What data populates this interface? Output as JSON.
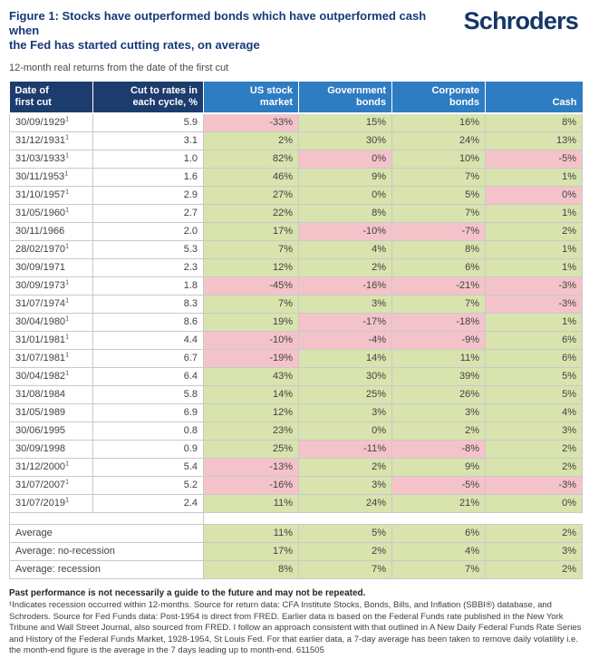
{
  "header": {
    "title": "Figure 1: Stocks have outperformed bonds which have outperformed cash when\nthe Fed has started cutting rates, on average",
    "brand": "Schroders",
    "subtitle": "12-month real returns from the date of the first cut"
  },
  "colors": {
    "header_dark_navy": "#1d3c6e",
    "header_blue": "#2e7cc2",
    "positive_cell_green": "#d8e3ae",
    "negative_cell_pink": "#f4c3ca",
    "title_blue": "#17397a"
  },
  "table": {
    "footnote_marker": "1",
    "columns": [
      {
        "key": "date_of_first_cut",
        "label": "Date of\nfirst cut",
        "style": "dark",
        "align": "left"
      },
      {
        "key": "cut_to_rates",
        "label": "Cut to rates in\neach cycle, %",
        "style": "dark",
        "align": "right"
      },
      {
        "key": "us_stock_market",
        "label": "US stock\nmarket",
        "style": "blue",
        "align": "right"
      },
      {
        "key": "government_bonds",
        "label": "Government\nbonds",
        "style": "blue",
        "align": "right"
      },
      {
        "key": "corporate_bonds",
        "label": "Corporate\nbonds",
        "style": "blue",
        "align": "right"
      },
      {
        "key": "cash",
        "label": "Cash",
        "style": "blue",
        "align": "right"
      }
    ],
    "rows": [
      {
        "date": "30/09/1929",
        "recession_footnote": true,
        "cut_to_rates": "5.9",
        "returns": [
          {
            "value": "-33%",
            "tone": "neg"
          },
          {
            "value": "15%",
            "tone": "pos"
          },
          {
            "value": "16%",
            "tone": "pos"
          },
          {
            "value": "8%",
            "tone": "pos"
          }
        ]
      },
      {
        "date": "31/12/1931",
        "recession_footnote": true,
        "cut_to_rates": "3.1",
        "returns": [
          {
            "value": "2%",
            "tone": "pos"
          },
          {
            "value": "30%",
            "tone": "pos"
          },
          {
            "value": "24%",
            "tone": "pos"
          },
          {
            "value": "13%",
            "tone": "pos"
          }
        ]
      },
      {
        "date": "31/03/1933",
        "recession_footnote": true,
        "cut_to_rates": "1.0",
        "returns": [
          {
            "value": "82%",
            "tone": "pos"
          },
          {
            "value": "0%",
            "tone": "neg"
          },
          {
            "value": "10%",
            "tone": "pos"
          },
          {
            "value": "-5%",
            "tone": "neg"
          }
        ]
      },
      {
        "date": "30/11/1953",
        "recession_footnote": true,
        "cut_to_rates": "1.6",
        "returns": [
          {
            "value": "46%",
            "tone": "pos"
          },
          {
            "value": "9%",
            "tone": "pos"
          },
          {
            "value": "7%",
            "tone": "pos"
          },
          {
            "value": "1%",
            "tone": "pos"
          }
        ]
      },
      {
        "date": "31/10/1957",
        "recession_footnote": true,
        "cut_to_rates": "2.9",
        "returns": [
          {
            "value": "27%",
            "tone": "pos"
          },
          {
            "value": "0%",
            "tone": "pos"
          },
          {
            "value": "5%",
            "tone": "pos"
          },
          {
            "value": "0%",
            "tone": "neg"
          }
        ]
      },
      {
        "date": "31/05/1960",
        "recession_footnote": true,
        "cut_to_rates": "2.7",
        "returns": [
          {
            "value": "22%",
            "tone": "pos"
          },
          {
            "value": "8%",
            "tone": "pos"
          },
          {
            "value": "7%",
            "tone": "pos"
          },
          {
            "value": "1%",
            "tone": "pos"
          }
        ]
      },
      {
        "date": "30/11/1966",
        "recession_footnote": false,
        "cut_to_rates": "2.0",
        "returns": [
          {
            "value": "17%",
            "tone": "pos"
          },
          {
            "value": "-10%",
            "tone": "neg"
          },
          {
            "value": "-7%",
            "tone": "neg"
          },
          {
            "value": "2%",
            "tone": "pos"
          }
        ]
      },
      {
        "date": "28/02/1970",
        "recession_footnote": true,
        "cut_to_rates": "5.3",
        "returns": [
          {
            "value": "7%",
            "tone": "pos"
          },
          {
            "value": "4%",
            "tone": "pos"
          },
          {
            "value": "8%",
            "tone": "pos"
          },
          {
            "value": "1%",
            "tone": "pos"
          }
        ]
      },
      {
        "date": "30/09/1971",
        "recession_footnote": false,
        "cut_to_rates": "2.3",
        "returns": [
          {
            "value": "12%",
            "tone": "pos"
          },
          {
            "value": "2%",
            "tone": "pos"
          },
          {
            "value": "6%",
            "tone": "pos"
          },
          {
            "value": "1%",
            "tone": "pos"
          }
        ]
      },
      {
        "date": "30/09/1973",
        "recession_footnote": true,
        "cut_to_rates": "1.8",
        "returns": [
          {
            "value": "-45%",
            "tone": "neg"
          },
          {
            "value": "-16%",
            "tone": "neg"
          },
          {
            "value": "-21%",
            "tone": "neg"
          },
          {
            "value": "-3%",
            "tone": "neg"
          }
        ]
      },
      {
        "date": "31/07/1974",
        "recession_footnote": true,
        "cut_to_rates": "8.3",
        "returns": [
          {
            "value": "7%",
            "tone": "pos"
          },
          {
            "value": "3%",
            "tone": "pos"
          },
          {
            "value": "7%",
            "tone": "pos"
          },
          {
            "value": "-3%",
            "tone": "neg"
          }
        ]
      },
      {
        "date": "30/04/1980",
        "recession_footnote": true,
        "cut_to_rates": "8.6",
        "returns": [
          {
            "value": "19%",
            "tone": "pos"
          },
          {
            "value": "-17%",
            "tone": "neg"
          },
          {
            "value": "-18%",
            "tone": "neg"
          },
          {
            "value": "1%",
            "tone": "pos"
          }
        ]
      },
      {
        "date": "31/01/1981",
        "recession_footnote": true,
        "cut_to_rates": "4.4",
        "returns": [
          {
            "value": "-10%",
            "tone": "neg"
          },
          {
            "value": "-4%",
            "tone": "neg"
          },
          {
            "value": "-9%",
            "tone": "neg"
          },
          {
            "value": "6%",
            "tone": "pos"
          }
        ]
      },
      {
        "date": "31/07/1981",
        "recession_footnote": true,
        "cut_to_rates": "6.7",
        "returns": [
          {
            "value": "-19%",
            "tone": "neg"
          },
          {
            "value": "14%",
            "tone": "pos"
          },
          {
            "value": "11%",
            "tone": "pos"
          },
          {
            "value": "6%",
            "tone": "pos"
          }
        ]
      },
      {
        "date": "30/04/1982",
        "recession_footnote": true,
        "cut_to_rates": "6.4",
        "returns": [
          {
            "value": "43%",
            "tone": "pos"
          },
          {
            "value": "30%",
            "tone": "pos"
          },
          {
            "value": "39%",
            "tone": "pos"
          },
          {
            "value": "5%",
            "tone": "pos"
          }
        ]
      },
      {
        "date": "31/08/1984",
        "recession_footnote": false,
        "cut_to_rates": "5.8",
        "returns": [
          {
            "value": "14%",
            "tone": "pos"
          },
          {
            "value": "25%",
            "tone": "pos"
          },
          {
            "value": "26%",
            "tone": "pos"
          },
          {
            "value": "5%",
            "tone": "pos"
          }
        ]
      },
      {
        "date": "31/05/1989",
        "recession_footnote": false,
        "cut_to_rates": "6.9",
        "returns": [
          {
            "value": "12%",
            "tone": "pos"
          },
          {
            "value": "3%",
            "tone": "pos"
          },
          {
            "value": "3%",
            "tone": "pos"
          },
          {
            "value": "4%",
            "tone": "pos"
          }
        ]
      },
      {
        "date": "30/06/1995",
        "recession_footnote": false,
        "cut_to_rates": "0.8",
        "returns": [
          {
            "value": "23%",
            "tone": "pos"
          },
          {
            "value": "0%",
            "tone": "pos"
          },
          {
            "value": "2%",
            "tone": "pos"
          },
          {
            "value": "3%",
            "tone": "pos"
          }
        ]
      },
      {
        "date": "30/09/1998",
        "recession_footnote": false,
        "cut_to_rates": "0.9",
        "returns": [
          {
            "value": "25%",
            "tone": "pos"
          },
          {
            "value": "-11%",
            "tone": "neg"
          },
          {
            "value": "-8%",
            "tone": "neg"
          },
          {
            "value": "2%",
            "tone": "pos"
          }
        ]
      },
      {
        "date": "31/12/2000",
        "recession_footnote": true,
        "cut_to_rates": "5.4",
        "returns": [
          {
            "value": "-13%",
            "tone": "neg"
          },
          {
            "value": "2%",
            "tone": "pos"
          },
          {
            "value": "9%",
            "tone": "pos"
          },
          {
            "value": "2%",
            "tone": "pos"
          }
        ]
      },
      {
        "date": "31/07/2007",
        "recession_footnote": true,
        "cut_to_rates": "5.2",
        "returns": [
          {
            "value": "-16%",
            "tone": "neg"
          },
          {
            "value": "3%",
            "tone": "pos"
          },
          {
            "value": "-5%",
            "tone": "neg"
          },
          {
            "value": "-3%",
            "tone": "neg"
          }
        ]
      },
      {
        "date": "31/07/2019",
        "recession_footnote": true,
        "cut_to_rates": "2.4",
        "returns": [
          {
            "value": "11%",
            "tone": "pos"
          },
          {
            "value": "24%",
            "tone": "pos"
          },
          {
            "value": "21%",
            "tone": "pos"
          },
          {
            "value": "0%",
            "tone": "pos"
          }
        ]
      }
    ],
    "averages": [
      {
        "label": "Average",
        "returns": [
          {
            "value": "11%",
            "tone": "pos"
          },
          {
            "value": "5%",
            "tone": "pos"
          },
          {
            "value": "6%",
            "tone": "pos"
          },
          {
            "value": "2%",
            "tone": "pos"
          }
        ]
      },
      {
        "label": "Average: no-recession",
        "returns": [
          {
            "value": "17%",
            "tone": "pos"
          },
          {
            "value": "2%",
            "tone": "pos"
          },
          {
            "value": "4%",
            "tone": "pos"
          },
          {
            "value": "3%",
            "tone": "pos"
          }
        ]
      },
      {
        "label": "Average: recession",
        "returns": [
          {
            "value": "8%",
            "tone": "pos"
          },
          {
            "value": "7%",
            "tone": "pos"
          },
          {
            "value": "7%",
            "tone": "pos"
          },
          {
            "value": "2%",
            "tone": "pos"
          }
        ]
      }
    ]
  },
  "footer": {
    "bold_note": "Past performance is not necessarily a guide to the future and may not be repeated.",
    "source_note": "¹Indicates recession occurred within 12-months. Source for return data: CFA Institute Stocks, Bonds, Bills, and Inflation (SBBI®) database, and Schroders. Source for Fed Funds data: Post-1954 is direct from FRED. Earlier data is based on the Federal Funds rate published in the New York Tribune and Wall Street Journal, also sourced from FRED. I follow an approach consistent with that outlined in A New Daily Federal Funds Rate Series and History of the Federal Funds Market, 1928-1954, St Louis Fed. For that earlier data, a 7-day average has been taken to remove daily volatility i.e. the month-end figure is the average in the 7 days leading up to month-end. 611505"
  }
}
